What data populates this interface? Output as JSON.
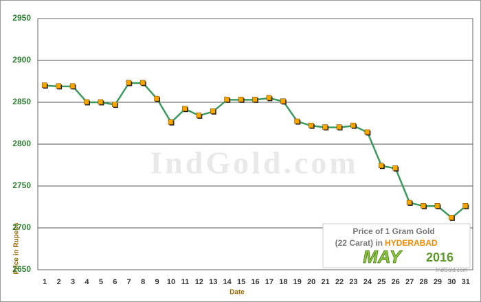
{
  "chart_data": {
    "type": "line",
    "x_label": "Date",
    "y_label": "Price in Rupees",
    "categories": [
      "1",
      "2",
      "3",
      "4",
      "5",
      "6",
      "7",
      "8",
      "9",
      "10",
      "11",
      "12",
      "13",
      "14",
      "15",
      "16",
      "17",
      "18",
      "19",
      "20",
      "21",
      "22",
      "23",
      "24",
      "25",
      "26",
      "27",
      "28",
      "29",
      "30",
      "31"
    ],
    "values": [
      2870,
      2869,
      2869,
      2850,
      2850,
      2847,
      2873,
      2873,
      2854,
      2826,
      2842,
      2834,
      2839,
      2853,
      2853,
      2853,
      2855,
      2851,
      2827,
      2822,
      2820,
      2820,
      2822,
      2814,
      2774,
      2771,
      2730,
      2726,
      2726,
      2712,
      2726
    ],
    "color": "#3c9a5f",
    "marker_color": "#f5a700",
    "ylim": [
      2650,
      2950
    ],
    "yticks": [
      2650,
      2700,
      2750,
      2800,
      2850,
      2900,
      2950
    ],
    "grid": true,
    "watermark": "IndGold.com",
    "note": {
      "line1": "Price of 1 Gram Gold",
      "line2": "(22 Carat) in",
      "city": "HYDERABAD",
      "month": "MAY",
      "year": "2016",
      "site": "IndGold.com"
    }
  }
}
